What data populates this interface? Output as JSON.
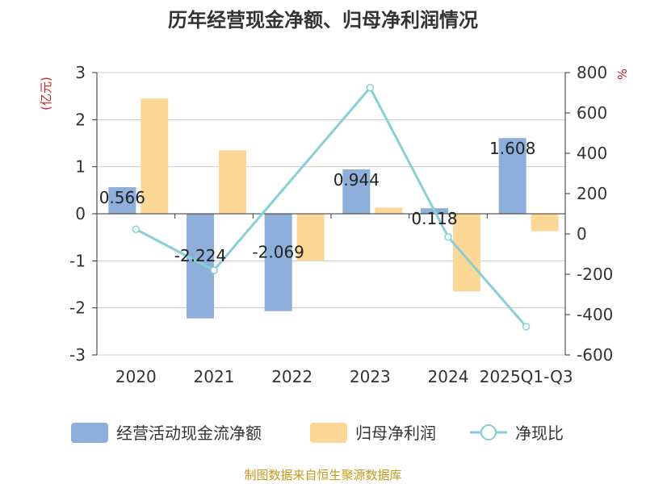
{
  "chart_data": {
    "type": "bar",
    "title": "历年经营现金净额、归母净利润情况",
    "categories": [
      "2020",
      "2021",
      "2022",
      "2023",
      "2024",
      "2025Q1-Q3"
    ],
    "y_left": {
      "label": "(亿元)",
      "min": -3,
      "max": 3,
      "ticks": [
        3,
        2,
        1,
        0,
        -1,
        -2,
        -3
      ]
    },
    "y_right": {
      "label": "%",
      "min": -600,
      "max": 800,
      "ticks": [
        800,
        600,
        400,
        200,
        0,
        -200,
        -400,
        -600
      ]
    },
    "grid": true,
    "legend_position": "bottom",
    "series": [
      {
        "name": "经营活动现金流净额",
        "type": "bar",
        "axis": "left",
        "color": "#8eaedb",
        "values": [
          0.566,
          -2.224,
          -2.069,
          0.944,
          0.118,
          1.608
        ],
        "labels": [
          "0.566",
          "-2.224",
          "-2.069",
          "0.944",
          "0.118",
          "1.608"
        ]
      },
      {
        "name": "归母净利润",
        "type": "bar",
        "axis": "left",
        "color": "#fdd795",
        "values": [
          2.45,
          1.35,
          -1.0,
          0.13,
          -1.65,
          -0.37
        ]
      },
      {
        "name": "净现比",
        "type": "line",
        "axis": "right",
        "color": "#86d0d5",
        "values": [
          23,
          -180,
          null,
          725,
          -15,
          -460
        ]
      }
    ],
    "source": "制图数据来自恒生聚源数据库"
  }
}
